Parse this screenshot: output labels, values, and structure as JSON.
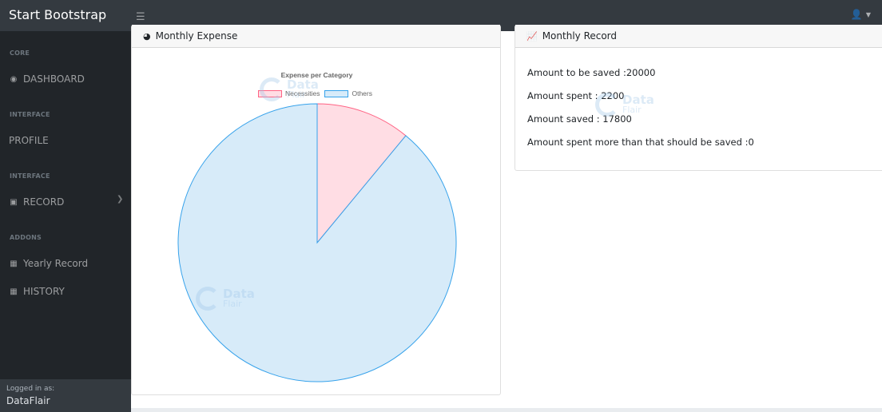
{
  "topbar": {
    "brand": "Start Bootstrap",
    "toggle_icon": "hamburger-icon",
    "user_icon": "user-icon"
  },
  "sidebar": {
    "headings": [
      "CORE",
      "INTERFACE",
      "INTERFACE",
      "ADDONS"
    ],
    "items": [
      {
        "label": "DASHBOARD",
        "icon": "dashboard-icon"
      },
      {
        "label": "PROFILE",
        "icon": ""
      },
      {
        "label": "RECORD",
        "icon": "book-icon"
      },
      {
        "label": "Yearly Record",
        "icon": "table-icon"
      },
      {
        "label": "HISTORY",
        "icon": "table-icon"
      }
    ],
    "footer_label": "Logged in as:",
    "footer_user": "DataFlair"
  },
  "expense_card": {
    "title": "Monthly Expense",
    "icon": "pie-chart-icon"
  },
  "record_card": {
    "title": "Monthly Record",
    "icon": "area-chart-icon",
    "lines": [
      "Amount to be saved :20000",
      "Amount spent : 2200",
      "Amount saved : 17800",
      "Amount spent more than that should be saved :0"
    ]
  },
  "watermark": {
    "line1": "Data",
    "line2": "Flair"
  },
  "chart_data": {
    "type": "pie",
    "title": "Expense per Category",
    "categories": [
      "Necessities",
      "Others"
    ],
    "values": [
      2200,
      17800
    ],
    "colors": [
      "#ffdde4",
      "#d7ebf9"
    ],
    "border_colors": [
      "#ff6384",
      "#36a2eb"
    ],
    "legend": "top"
  }
}
